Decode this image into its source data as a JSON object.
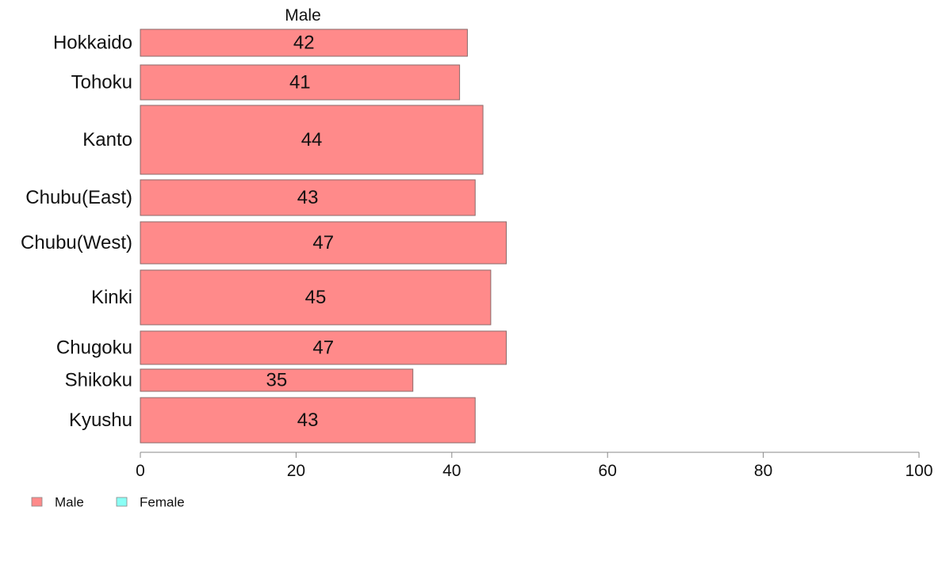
{
  "chart_data": {
    "type": "bar",
    "orientation": "horizontal",
    "panel_title": "Male",
    "categories": [
      "Hokkaido",
      "Tohoku",
      "Kanto",
      "Chubu(East)",
      "Chubu(West)",
      "Kinki",
      "Chugoku",
      "Shikoku",
      "Kyushu"
    ],
    "series": [
      {
        "name": "Male",
        "color": "#ff8a8a",
        "values": [
          42,
          41,
          44,
          43,
          47,
          45,
          47,
          35,
          43
        ],
        "labels": [
          "42",
          "41",
          "44",
          "43",
          "47",
          "45",
          "47",
          "35",
          "43"
        ]
      }
    ],
    "xlim": [
      0,
      100
    ],
    "xticks": [
      0,
      20,
      40,
      60,
      80,
      100
    ],
    "xtick_labels": [
      "0",
      "20",
      "40",
      "60",
      "80",
      "100"
    ],
    "grid": false,
    "legend": {
      "position": "bottom-left",
      "items": [
        {
          "label": "Male",
          "color": "#ff8a8a"
        },
        {
          "label": "Female",
          "color": "#8afff5"
        }
      ]
    }
  }
}
